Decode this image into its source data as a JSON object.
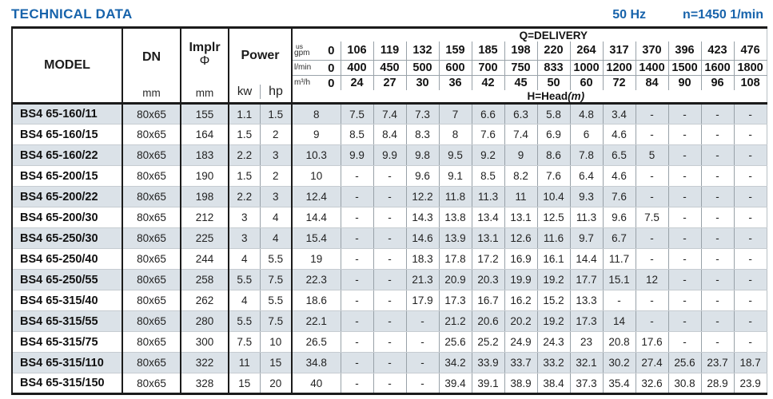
{
  "header": {
    "title": "TECHNICAL DATA",
    "frequency": "50 Hz",
    "rotation_speed": "n=1450 1/min"
  },
  "table": {
    "column_headers": {
      "model": "MODEL",
      "dn": "DN",
      "dn_unit": "mm",
      "impeller_abbr": "Implr",
      "impeller_symbol": "Φ",
      "impeller_unit": "mm",
      "power": "Power",
      "power_kw": "kw",
      "power_hp": "hp",
      "q_delivery": "Q=DELIVERY",
      "h_head": "H=Head",
      "h_head_unit": "(m)"
    },
    "delivery_units": [
      {
        "label_small": "us",
        "label": "gpm",
        "zero": "0",
        "values": [
          "106",
          "119",
          "132",
          "159",
          "185",
          "198",
          "220",
          "264",
          "317",
          "370",
          "396",
          "423",
          "476"
        ]
      },
      {
        "label_small": "",
        "label": "l/min",
        "zero": "0",
        "values": [
          "400",
          "450",
          "500",
          "600",
          "700",
          "750",
          "833",
          "1000",
          "1200",
          "1400",
          "1500",
          "1600",
          "1800"
        ]
      },
      {
        "label_small": "",
        "label": "m³/h",
        "zero": "0",
        "values": [
          "24",
          "27",
          "30",
          "36",
          "42",
          "45",
          "50",
          "60",
          "72",
          "84",
          "90",
          "96",
          "108"
        ]
      }
    ],
    "rows": [
      {
        "model": "BS4 65-160/11",
        "dn": "80x65",
        "implr": "155",
        "kw": "1.1",
        "hp": "1.5",
        "head": [
          "8",
          "7.5",
          "7.4",
          "7.3",
          "7",
          "6.6",
          "6.3",
          "5.8",
          "4.8",
          "3.4",
          "-",
          "-",
          "-",
          "-"
        ]
      },
      {
        "model": "BS4 65-160/15",
        "dn": "80x65",
        "implr": "164",
        "kw": "1.5",
        "hp": "2",
        "head": [
          "9",
          "8.5",
          "8.4",
          "8.3",
          "8",
          "7.6",
          "7.4",
          "6.9",
          "6",
          "4.6",
          "-",
          "-",
          "-",
          "-"
        ]
      },
      {
        "model": "BS4 65-160/22",
        "dn": "80x65",
        "implr": "183",
        "kw": "2.2",
        "hp": "3",
        "head": [
          "10.3",
          "9.9",
          "9.9",
          "9.8",
          "9.5",
          "9.2",
          "9",
          "8.6",
          "7.8",
          "6.5",
          "5",
          "-",
          "-",
          "-"
        ]
      },
      {
        "model": "BS4 65-200/15",
        "dn": "80x65",
        "implr": "190",
        "kw": "1.5",
        "hp": "2",
        "head": [
          "10",
          "-",
          "-",
          "9.6",
          "9.1",
          "8.5",
          "8.2",
          "7.6",
          "6.4",
          "4.6",
          "-",
          "-",
          "-",
          "-"
        ]
      },
      {
        "model": "BS4 65-200/22",
        "dn": "80x65",
        "implr": "198",
        "kw": "2.2",
        "hp": "3",
        "head": [
          "12.4",
          "-",
          "-",
          "12.2",
          "11.8",
          "11.3",
          "11",
          "10.4",
          "9.3",
          "7.6",
          "-",
          "-",
          "-",
          "-"
        ]
      },
      {
        "model": "BS4 65-200/30",
        "dn": "80x65",
        "implr": "212",
        "kw": "3",
        "hp": "4",
        "head": [
          "14.4",
          "-",
          "-",
          "14.3",
          "13.8",
          "13.4",
          "13.1",
          "12.5",
          "11.3",
          "9.6",
          "7.5",
          "-",
          "-",
          "-"
        ]
      },
      {
        "model": "BS4 65-250/30",
        "dn": "80x65",
        "implr": "225",
        "kw": "3",
        "hp": "4",
        "head": [
          "15.4",
          "-",
          "-",
          "14.6",
          "13.9",
          "13.1",
          "12.6",
          "11.6",
          "9.7",
          "6.7",
          "-",
          "-",
          "-",
          "-"
        ]
      },
      {
        "model": "BS4 65-250/40",
        "dn": "80x65",
        "implr": "244",
        "kw": "4",
        "hp": "5.5",
        "head": [
          "19",
          "-",
          "-",
          "18.3",
          "17.8",
          "17.2",
          "16.9",
          "16.1",
          "14.4",
          "11.7",
          "-",
          "-",
          "-",
          "-"
        ]
      },
      {
        "model": "BS4 65-250/55",
        "dn": "80x65",
        "implr": "258",
        "kw": "5.5",
        "hp": "7.5",
        "head": [
          "22.3",
          "-",
          "-",
          "21.3",
          "20.9",
          "20.3",
          "19.9",
          "19.2",
          "17.7",
          "15.1",
          "12",
          "-",
          "-",
          "-"
        ]
      },
      {
        "model": "BS4 65-315/40",
        "dn": "80x65",
        "implr": "262",
        "kw": "4",
        "hp": "5.5",
        "head": [
          "18.6",
          "-",
          "-",
          "17.9",
          "17.3",
          "16.7",
          "16.2",
          "15.2",
          "13.3",
          "-",
          "-",
          "-",
          "-",
          "-"
        ]
      },
      {
        "model": "BS4 65-315/55",
        "dn": "80x65",
        "implr": "280",
        "kw": "5.5",
        "hp": "7.5",
        "head": [
          "22.1",
          "-",
          "-",
          "-",
          "21.2",
          "20.6",
          "20.2",
          "19.2",
          "17.3",
          "14",
          "-",
          "-",
          "-",
          "-"
        ]
      },
      {
        "model": "BS4 65-315/75",
        "dn": "80x65",
        "implr": "300",
        "kw": "7.5",
        "hp": "10",
        "head": [
          "26.5",
          "-",
          "-",
          "-",
          "25.6",
          "25.2",
          "24.9",
          "24.3",
          "23",
          "20.8",
          "17.6",
          "-",
          "-",
          "-"
        ]
      },
      {
        "model": "BS4 65-315/110",
        "dn": "80x65",
        "implr": "322",
        "kw": "11",
        "hp": "15",
        "head": [
          "34.8",
          "-",
          "-",
          "-",
          "34.2",
          "33.9",
          "33.7",
          "33.2",
          "32.1",
          "30.2",
          "27.4",
          "25.6",
          "23.7",
          "18.7"
        ]
      },
      {
        "model": "BS4 65-315/150",
        "dn": "80x65",
        "implr": "328",
        "kw": "15",
        "hp": "20",
        "head": [
          "40",
          "-",
          "-",
          "-",
          "39.4",
          "39.1",
          "38.9",
          "38.4",
          "37.3",
          "35.4",
          "32.6",
          "30.8",
          "28.9",
          "23.9"
        ]
      }
    ]
  },
  "colors": {
    "accent_blue": "#1763ab",
    "row_shade": "#dbe2e8",
    "border_dark": "#1b1b1b",
    "grid_light": "#98a1a8"
  }
}
